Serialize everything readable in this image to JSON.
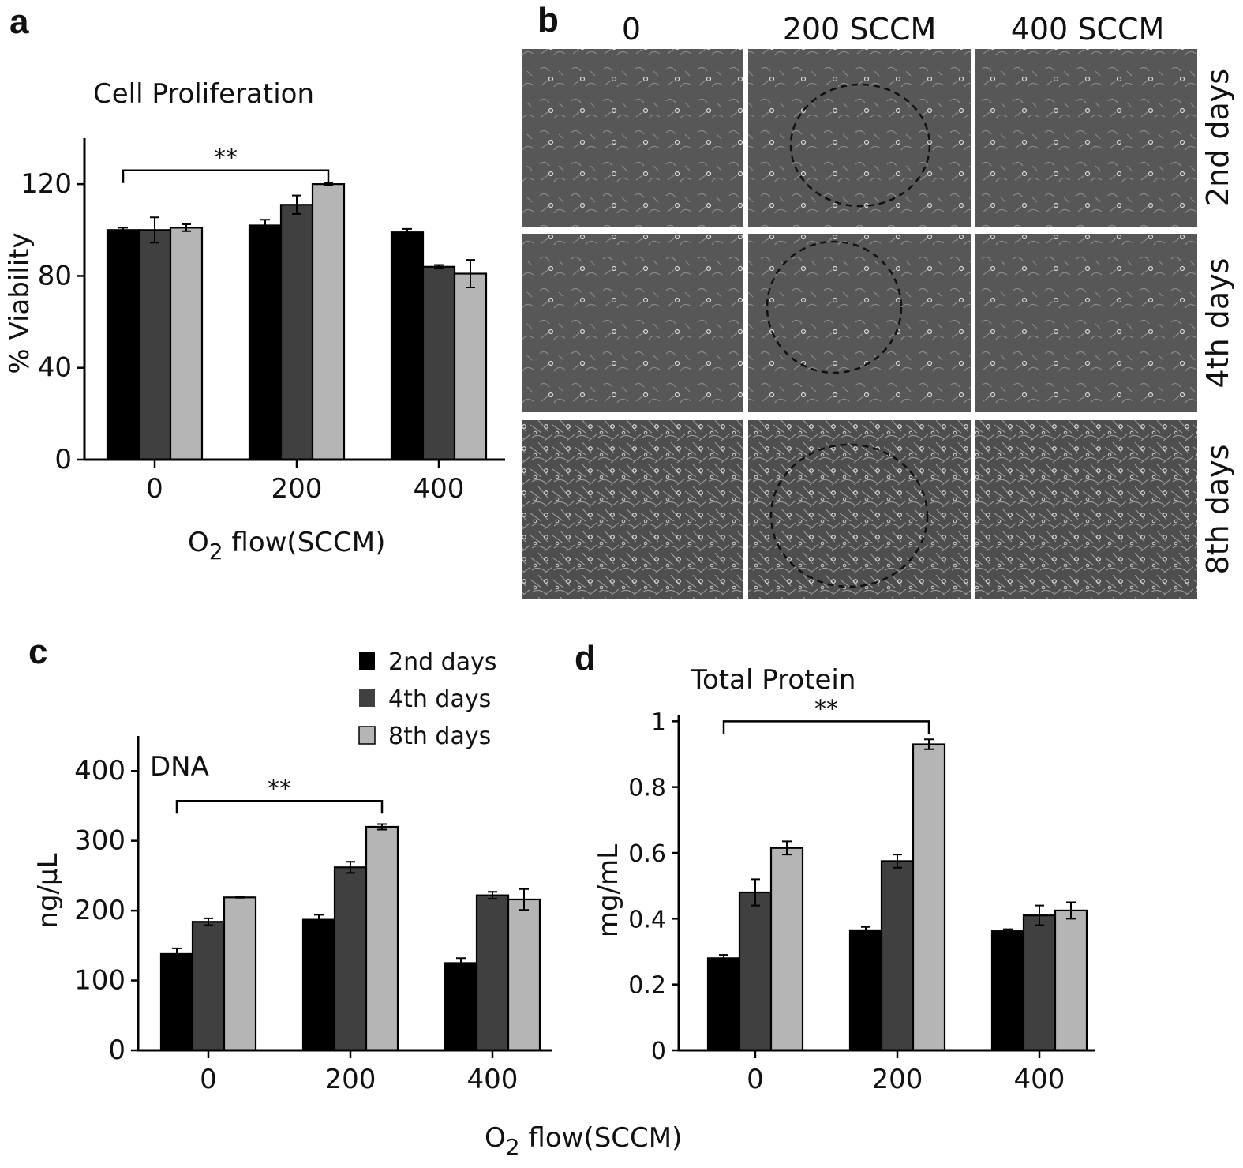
{
  "colors": {
    "series": [
      "#000000",
      "#404040",
      "#b5b5b5"
    ],
    "micrograph_bg": "#545454",
    "micrograph_dark": "#3c3c3c"
  },
  "legend": {
    "items": [
      "2nd days",
      "4th days",
      "8th days"
    ]
  },
  "panel_b": {
    "letter": "b",
    "columns": [
      "0",
      "200 SCCM",
      "400 SCCM"
    ],
    "rows": [
      "2nd days",
      "4th days",
      "8th days"
    ]
  },
  "x_axis_subscript": "2",
  "chart_data": [
    {
      "panel": "a",
      "type": "bar",
      "title": "Cell Proliferation",
      "categories": [
        "0",
        "200",
        "400"
      ],
      "xlabel_prefix": "O",
      "xlabel_suffix": " flow(SCCM)",
      "ylabel": "% Viability",
      "ylim": [
        0,
        140
      ],
      "yticks": [
        0,
        40,
        80,
        120
      ],
      "series": [
        {
          "values": [
            100,
            102,
            99
          ],
          "errors": [
            1,
            2.5,
            1.5
          ]
        },
        {
          "values": [
            100,
            111,
            84
          ],
          "errors": [
            5.5,
            4,
            0.8
          ]
        },
        {
          "values": [
            101,
            120,
            81
          ],
          "errors": [
            1.5,
            0.5,
            6
          ]
        }
      ],
      "significance": {
        "label": "**",
        "from": [
          0,
          0
        ],
        "to": [
          1,
          2
        ],
        "y": 126
      }
    },
    {
      "panel": "c",
      "type": "bar",
      "title": "DNA",
      "categories": [
        "0",
        "200",
        "400"
      ],
      "ylabel": "ng/µL",
      "ylim": [
        0,
        450
      ],
      "yticks": [
        0,
        100,
        200,
        300,
        400
      ],
      "series": [
        {
          "values": [
            138,
            187,
            125
          ],
          "errors": [
            8,
            7,
            7
          ]
        },
        {
          "values": [
            184,
            262,
            222
          ],
          "errors": [
            5,
            8,
            5
          ]
        },
        {
          "values": [
            219,
            320,
            216
          ],
          "errors": [
            0.5,
            4,
            15
          ]
        }
      ],
      "significance": {
        "label": "**",
        "from": [
          0,
          0
        ],
        "to": [
          1,
          2
        ],
        "y": 357
      }
    },
    {
      "panel": "d",
      "type": "bar",
      "title": "Total Protein",
      "categories": [
        "0",
        "200",
        "400"
      ],
      "ylabel": "mg/mL",
      "ylim": [
        0,
        1.02
      ],
      "yticks": [
        "0",
        "0.2",
        "0.4",
        "0.6",
        "0.8",
        "1"
      ],
      "series": [
        {
          "values": [
            0.28,
            0.365,
            0.362
          ],
          "errors": [
            0.01,
            0.01,
            0.006
          ]
        },
        {
          "values": [
            0.48,
            0.575,
            0.41
          ],
          "errors": [
            0.04,
            0.02,
            0.03
          ]
        },
        {
          "values": [
            0.615,
            0.93,
            0.425
          ],
          "errors": [
            0.02,
            0.015,
            0.025
          ]
        }
      ],
      "significance": {
        "label": "**",
        "from": [
          0,
          0
        ],
        "to": [
          1,
          2
        ],
        "y": 1.0
      }
    }
  ],
  "shared_xlabel_prefix": "O",
  "shared_xlabel_suffix": " flow(SCCM)"
}
